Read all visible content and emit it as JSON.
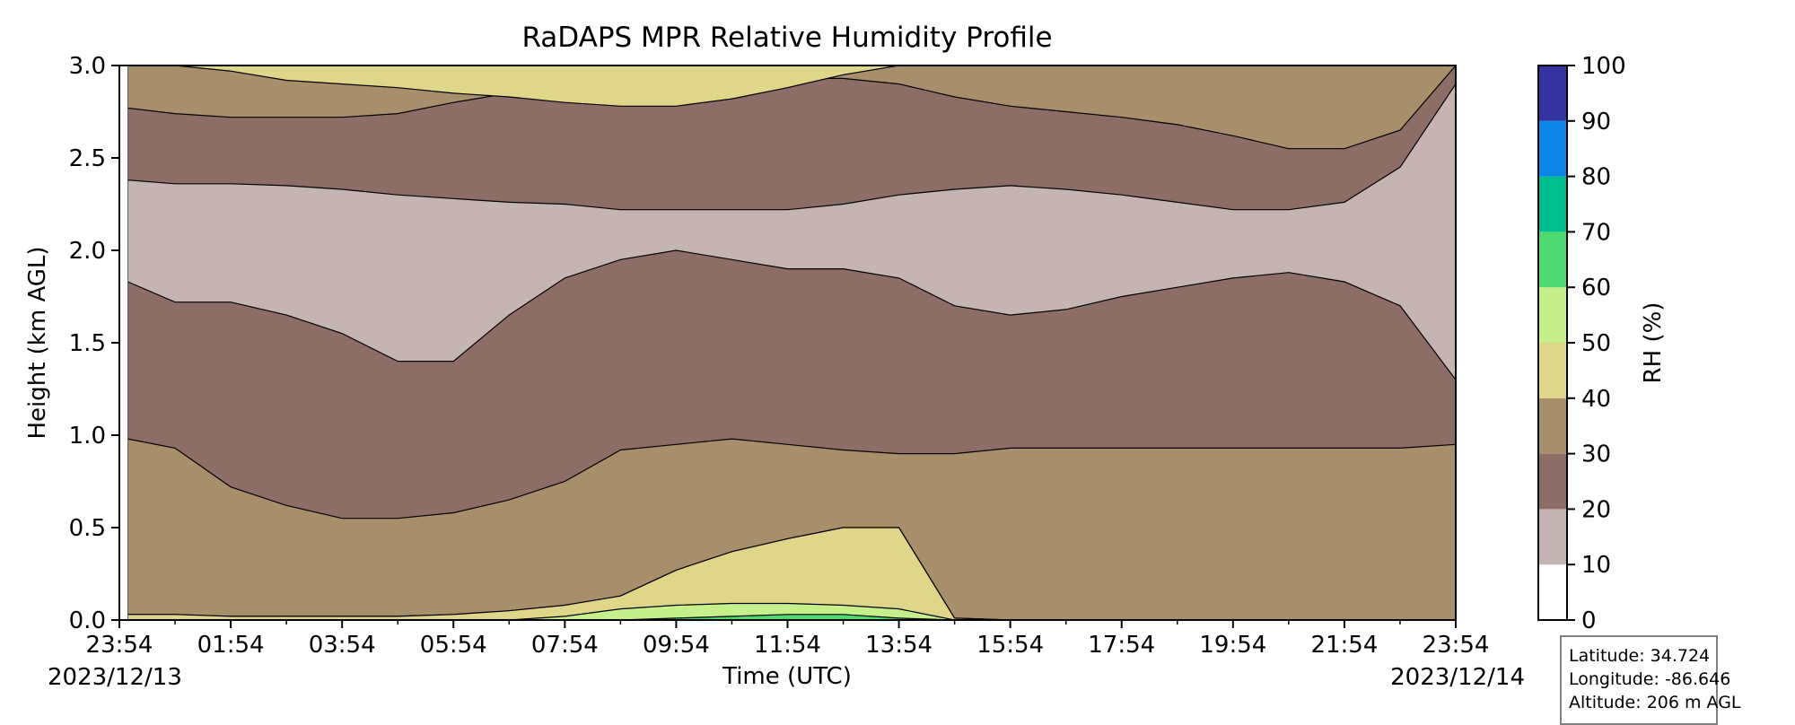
{
  "chart_data": {
    "type": "heatmap",
    "subtype": "filled-contour",
    "title": "RaDAPS MPR Relative Humidity Profile",
    "xlabel": "Time (UTC)",
    "ylabel": "Height (km AGL)",
    "colorbar_label": "RH (%)",
    "x_tick_labels": [
      "23:54",
      "01:54",
      "03:54",
      "05:54",
      "07:54",
      "09:54",
      "11:54",
      "13:54",
      "15:54",
      "17:54",
      "19:54",
      "21:54",
      "23:54"
    ],
    "x_hours": [
      0,
      2,
      4,
      6,
      8,
      10,
      12,
      14,
      16,
      18,
      20,
      22,
      24
    ],
    "x_range_hours": [
      0,
      24
    ],
    "start_date": "2023/12/13",
    "end_date": "2023/12/14",
    "y_ticks": [
      0.0,
      0.5,
      1.0,
      1.5,
      2.0,
      2.5,
      3.0
    ],
    "y_tick_labels": [
      "0.0",
      "0.5",
      "1.0",
      "1.5",
      "2.0",
      "2.5",
      "3.0"
    ],
    "ylim": [
      0,
      3
    ],
    "colorbar_levels": [
      0,
      10,
      20,
      30,
      40,
      50,
      60,
      70,
      80,
      90,
      100
    ],
    "colorbar_tick_labels": [
      "0",
      "10",
      "20",
      "30",
      "40",
      "50",
      "60",
      "70",
      "80",
      "90",
      "100"
    ],
    "colorbar_colors": [
      "#ffffff",
      "#c4b5b2",
      "#8c6e66",
      "#a88f6b",
      "#e0d68a",
      "#c6f08c",
      "#4fd972",
      "#00bf8f",
      "#0c85e6",
      "#3333a2"
    ],
    "boundary_profiles": {
      "x_hours": [
        0,
        1,
        2,
        3,
        4,
        5,
        6,
        7,
        8,
        9,
        10,
        11,
        12,
        13,
        14,
        15,
        16,
        17,
        18,
        19,
        20,
        21,
        22,
        23,
        24
      ],
      "rh20_lower": [
        1.83,
        1.72,
        1.72,
        1.65,
        1.55,
        1.4,
        1.4,
        1.65,
        1.85,
        1.95,
        2.0,
        1.95,
        1.9,
        1.9,
        1.85,
        1.7,
        1.65,
        1.68,
        1.75,
        1.8,
        1.85,
        1.88,
        1.83,
        1.7,
        1.3
      ],
      "rh20_upper": [
        2.38,
        2.36,
        2.36,
        2.35,
        2.33,
        2.3,
        2.28,
        2.26,
        2.25,
        2.22,
        2.22,
        2.22,
        2.22,
        2.25,
        2.3,
        2.33,
        2.35,
        2.33,
        2.3,
        2.26,
        2.22,
        2.22,
        2.26,
        2.45,
        2.9
      ],
      "rh30_lower": [
        0.98,
        0.93,
        0.72,
        0.62,
        0.55,
        0.55,
        0.58,
        0.65,
        0.75,
        0.92,
        0.95,
        0.98,
        0.95,
        0.92,
        0.9,
        0.9,
        0.93,
        0.93,
        0.93,
        0.93,
        0.93,
        0.93,
        0.93,
        0.93,
        0.95
      ],
      "rh30_upper": [
        2.77,
        2.74,
        2.72,
        2.72,
        2.72,
        2.74,
        2.8,
        2.85,
        2.88,
        2.9,
        2.92,
        2.93,
        2.93,
        2.93,
        2.9,
        2.83,
        2.78,
        2.75,
        2.72,
        2.68,
        2.62,
        2.55,
        2.55,
        2.65,
        3.0
      ],
      "rh40_lower": [
        0.03,
        0.03,
        0.02,
        0.02,
        0.02,
        0.02,
        0.03,
        0.05,
        0.08,
        0.13,
        0.27,
        0.37,
        0.44,
        0.5,
        0.5,
        0.01,
        0.0,
        0.0,
        0.0,
        0.0,
        0.0,
        0.0,
        0.0,
        0.0,
        0.0
      ],
      "rh40_upper": [
        3.0,
        3.0,
        2.97,
        2.92,
        2.9,
        2.88,
        2.85,
        2.83,
        2.8,
        2.78,
        2.78,
        2.82,
        2.88,
        2.95,
        3.0,
        3.0,
        3.0,
        3.0,
        3.0,
        3.0,
        3.0,
        3.0,
        3.0,
        3.0,
        3.0
      ],
      "rh50_lower": [
        0.0,
        0.0,
        0.0,
        0.0,
        0.0,
        0.0,
        0.0,
        0.0,
        0.02,
        0.06,
        0.08,
        0.09,
        0.09,
        0.08,
        0.06,
        0.0,
        0.0,
        0.0,
        0.0,
        0.0,
        0.0,
        0.0,
        0.0,
        0.0,
        0.0
      ],
      "rh60_lower": [
        0.0,
        0.0,
        0.0,
        0.0,
        0.0,
        0.0,
        0.0,
        0.0,
        0.0,
        0.0,
        0.01,
        0.02,
        0.03,
        0.03,
        0.01,
        0.0,
        0.0,
        0.0,
        0.0,
        0.0,
        0.0,
        0.0,
        0.0,
        0.0,
        0.0
      ]
    }
  },
  "info_box": {
    "latitude": "Latitude: 34.724",
    "longitude": "Longitude: -86.646",
    "altitude": "Altitude: 206 m AGL"
  }
}
